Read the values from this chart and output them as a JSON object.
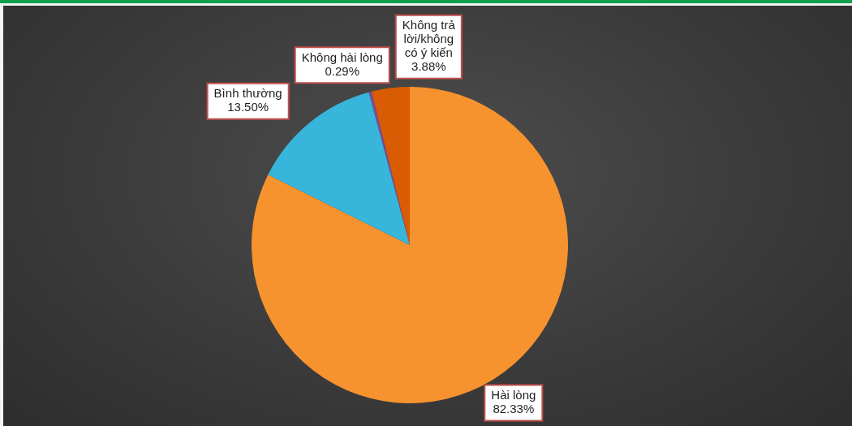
{
  "chart_data": {
    "type": "pie",
    "categories": [
      "Hài lòng",
      "Bình thường",
      "Không hài lòng",
      "Không trả lời/không có ý kiến"
    ],
    "values": [
      82.33,
      13.5,
      0.29,
      3.88
    ],
    "colors": [
      "#f7932f",
      "#38b5da",
      "#7a4c9e",
      "#d95b04"
    ],
    "value_labels": [
      "82.33%",
      "13.50%",
      "0.29%",
      "3.88%"
    ]
  }
}
